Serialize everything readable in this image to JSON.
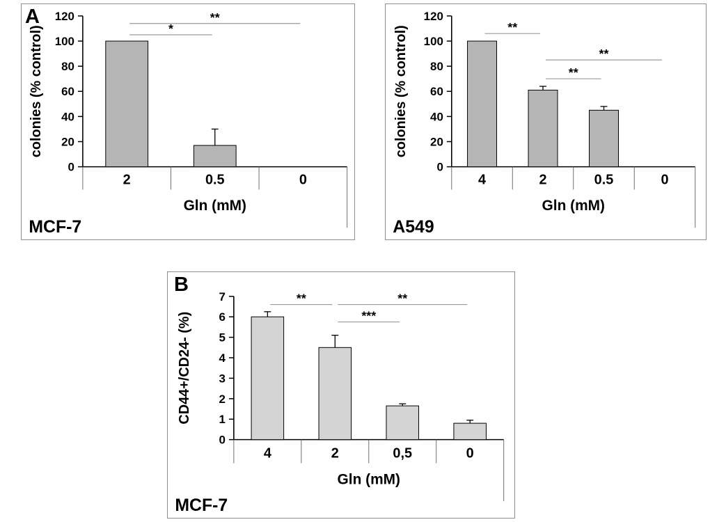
{
  "panels": {
    "a_label": "A",
    "b_label": "B"
  },
  "colors": {
    "axis": "#000000",
    "sig_line": "#9a9a9a",
    "panel_border": "#8e8e8e",
    "bar_stroke": "#000000"
  },
  "chart_data": [
    {
      "id": "colonies-mcf7",
      "type": "bar",
      "cell_label": "MCF-7",
      "xlabel": "Gln (mM)",
      "ylabel": "colonies (% control)",
      "ylim": [
        0,
        120
      ],
      "yticks": [
        0,
        20,
        40,
        60,
        80,
        100,
        120
      ],
      "categories": [
        "2",
        "0.5",
        "0"
      ],
      "values": [
        100,
        17,
        0
      ],
      "errors_plus": [
        0,
        13,
        0
      ],
      "bar_fill": "#b5b5b5",
      "grid": false,
      "legend": false,
      "significance": [
        {
          "from": 0,
          "to": 1,
          "label": "*",
          "y": 105
        },
        {
          "from": 0,
          "to": 2,
          "label": "**",
          "y": 114
        }
      ]
    },
    {
      "id": "colonies-a549",
      "type": "bar",
      "cell_label": "A549",
      "xlabel": "Gln (mM)",
      "ylabel": "colonies (% control)",
      "ylim": [
        0,
        120
      ],
      "yticks": [
        0,
        20,
        40,
        60,
        80,
        100,
        120
      ],
      "categories": [
        "4",
        "2",
        "0.5",
        "0"
      ],
      "values": [
        100,
        61,
        45,
        0
      ],
      "errors_plus": [
        0,
        3,
        3,
        0
      ],
      "bar_fill": "#b5b5b5",
      "grid": false,
      "legend": false,
      "significance": [
        {
          "from": 0,
          "to": 1,
          "label": "**",
          "y": 106
        },
        {
          "from": 1,
          "to": 3,
          "label": "**",
          "y": 85
        },
        {
          "from": 1,
          "to": 2,
          "label": "**",
          "y": 70
        }
      ]
    },
    {
      "id": "cd44-cd24-mcf7",
      "type": "bar",
      "cell_label": "MCF-7",
      "xlabel": "Gln (mM)",
      "ylabel": "CD44+/CD24- (%)",
      "ylim": [
        0,
        7
      ],
      "yticks": [
        0,
        1,
        2,
        3,
        4,
        5,
        6,
        7
      ],
      "categories": [
        "4",
        "2",
        "0,5",
        "0"
      ],
      "values": [
        6,
        4.5,
        1.65,
        0.8
      ],
      "errors_plus": [
        0.25,
        0.6,
        0.1,
        0.15
      ],
      "bar_fill": "#d4d4d4",
      "grid": false,
      "legend": false,
      "significance": [
        {
          "from": 0,
          "to": 1,
          "label": "**",
          "y": 6.6
        },
        {
          "from": 1,
          "to": 3,
          "label": "**",
          "y": 6.6
        },
        {
          "from": 1,
          "to": 2,
          "label": "***",
          "y": 5.75
        }
      ]
    }
  ]
}
